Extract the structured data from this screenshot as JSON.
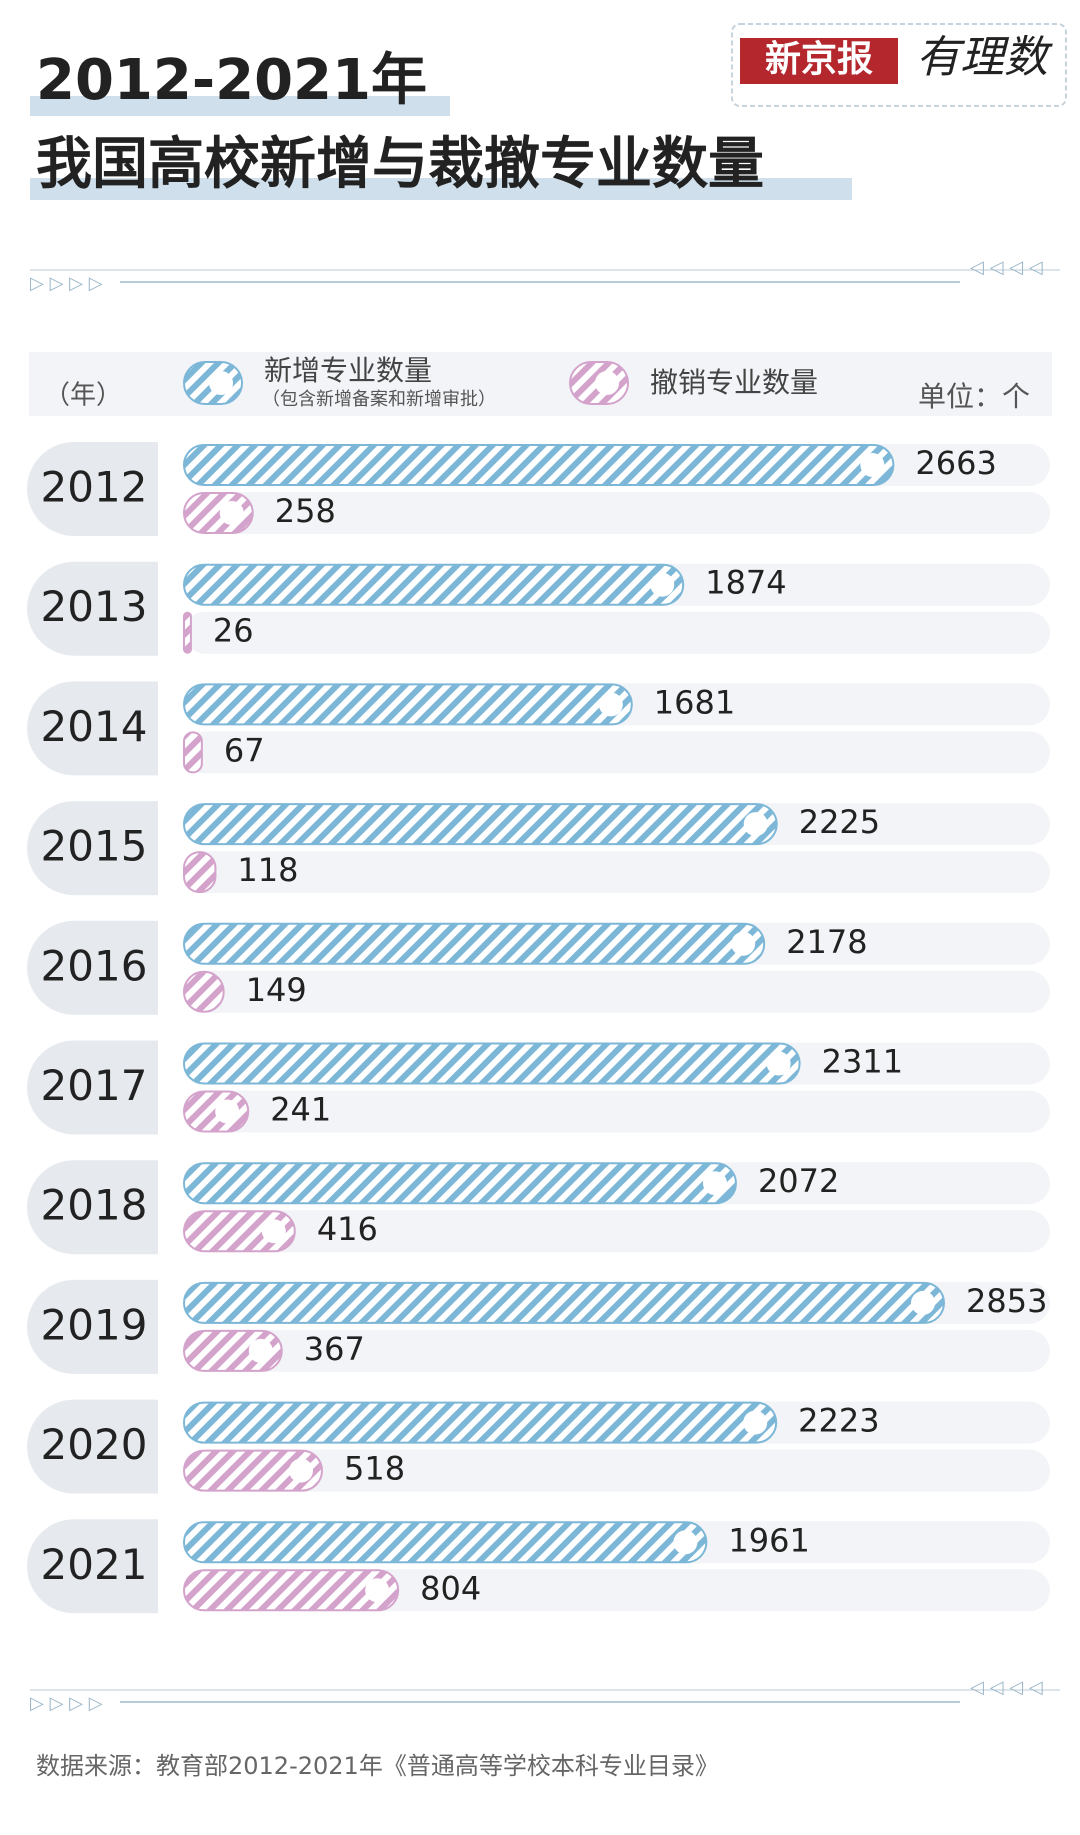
{
  "chart_data": {
    "type": "bar",
    "orientation": "horizontal",
    "brand": "新京报",
    "brand_sub": "有理数",
    "title": "2012-2021年",
    "subtitle": "我国高校新增与裁撤专业数量",
    "category_axis_label": "（年）",
    "unit": "单位：个",
    "legend_note": "（包含新增备案和新增审批）",
    "source": "数据来源：教育部2012-2021年《普通高等学校本科专业目录》",
    "categories": [
      "2012",
      "2013",
      "2014",
      "2015",
      "2016",
      "2017",
      "2018",
      "2019",
      "2020",
      "2021"
    ],
    "series": [
      {
        "name": "新增专业数量",
        "color": "#7db7d8",
        "values": [
          2663,
          1874,
          1681,
          2225,
          2178,
          2311,
          2072,
          2853,
          2223,
          1961
        ]
      },
      {
        "name": "撤销专业数量",
        "color": "#d4a3cc",
        "values": [
          258,
          26,
          67,
          118,
          149,
          241,
          416,
          367,
          518,
          804
        ]
      }
    ]
  }
}
